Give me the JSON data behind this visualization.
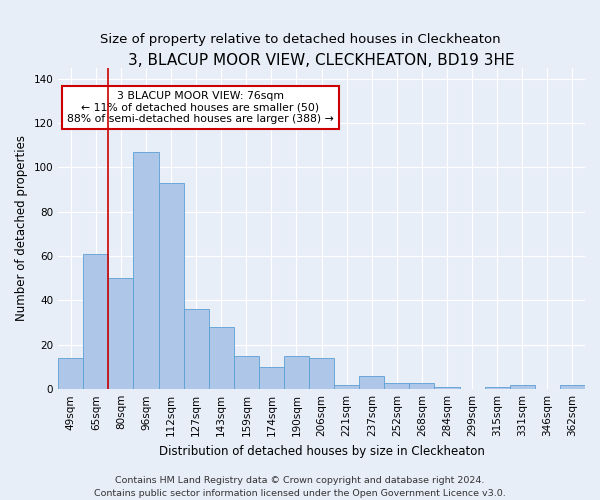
{
  "title": "3, BLACUP MOOR VIEW, CLECKHEATON, BD19 3HE",
  "subtitle": "Size of property relative to detached houses in Cleckheaton",
  "xlabel": "Distribution of detached houses by size in Cleckheaton",
  "ylabel": "Number of detached properties",
  "categories": [
    "49sqm",
    "65sqm",
    "80sqm",
    "96sqm",
    "112sqm",
    "127sqm",
    "143sqm",
    "159sqm",
    "174sqm",
    "190sqm",
    "206sqm",
    "221sqm",
    "237sqm",
    "252sqm",
    "268sqm",
    "284sqm",
    "299sqm",
    "315sqm",
    "331sqm",
    "346sqm",
    "362sqm"
  ],
  "values": [
    14,
    61,
    50,
    107,
    93,
    36,
    28,
    15,
    10,
    15,
    14,
    2,
    6,
    3,
    3,
    1,
    0,
    1,
    2,
    0,
    2
  ],
  "bar_color": "#aec6e8",
  "bar_edge_color": "#5a9fd4",
  "ylim": [
    0,
    145
  ],
  "yticks": [
    0,
    20,
    40,
    60,
    80,
    100,
    120,
    140
  ],
  "red_line_x": 1.5,
  "annotation_text": "3 BLACUP MOOR VIEW: 76sqm\n← 11% of detached houses are smaller (50)\n88% of semi-detached houses are larger (388) →",
  "annotation_box_color": "white",
  "annotation_box_edge_color": "#cc0000",
  "footer_line1": "Contains HM Land Registry data © Crown copyright and database right 2024.",
  "footer_line2": "Contains public sector information licensed under the Open Government Licence v3.0.",
  "background_color": "#e8eef8",
  "plot_bg_color": "#e8eef8",
  "grid_color": "white",
  "title_fontsize": 11,
  "subtitle_fontsize": 9.5,
  "axis_label_fontsize": 8.5,
  "tick_fontsize": 7.5,
  "annotation_fontsize": 7.8,
  "footer_fontsize": 6.8
}
